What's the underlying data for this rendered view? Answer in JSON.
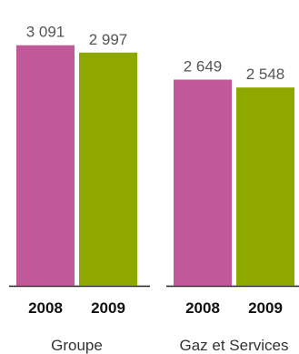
{
  "chart_data": [
    {
      "type": "bar",
      "categories": [
        "2008",
        "2009"
      ],
      "values": [
        3091,
        2997
      ],
      "value_labels": [
        "3 091",
        "2 997"
      ],
      "group_label": "Groupe"
    },
    {
      "type": "bar",
      "categories": [
        "2008",
        "2009"
      ],
      "values": [
        2649,
        2548
      ],
      "value_labels": [
        "2 649",
        "2 548"
      ],
      "group_label": "Gaz et Services"
    }
  ],
  "colors": {
    "2008": "#c0589a",
    "2009": "#8fa800",
    "axis": "#222222"
  }
}
